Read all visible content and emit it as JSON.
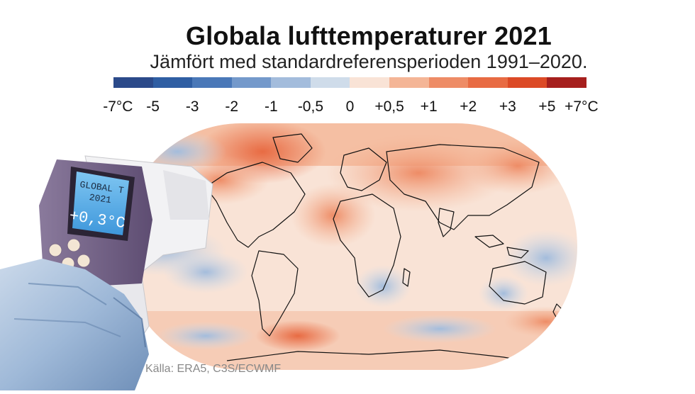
{
  "header": {
    "title": "Globala lufttemperaturer 2021",
    "subtitle": "Jämfört med standardreferensperioden 1991–2020."
  },
  "legend": {
    "colors": [
      "#2b4a8a",
      "#2f5ea3",
      "#4a78b8",
      "#7499cb",
      "#a3bcdc",
      "#cfdcea",
      "#f9e3d6",
      "#f4b596",
      "#ee8c66",
      "#e86b43",
      "#dc4a26",
      "#a61f1d"
    ],
    "tick_labels": [
      "-7°C",
      "-5",
      "-3",
      "-2",
      "-1",
      "-0,5",
      "0",
      "+0,5",
      "+1",
      "+2",
      "+3",
      "+5",
      "+7°C"
    ]
  },
  "thermometer": {
    "display_line1": "GLOBAL T",
    "display_line2": "2021",
    "display_value": "+0,3°C"
  },
  "source": "Källa: ERA5, C3S/ECWMF"
}
